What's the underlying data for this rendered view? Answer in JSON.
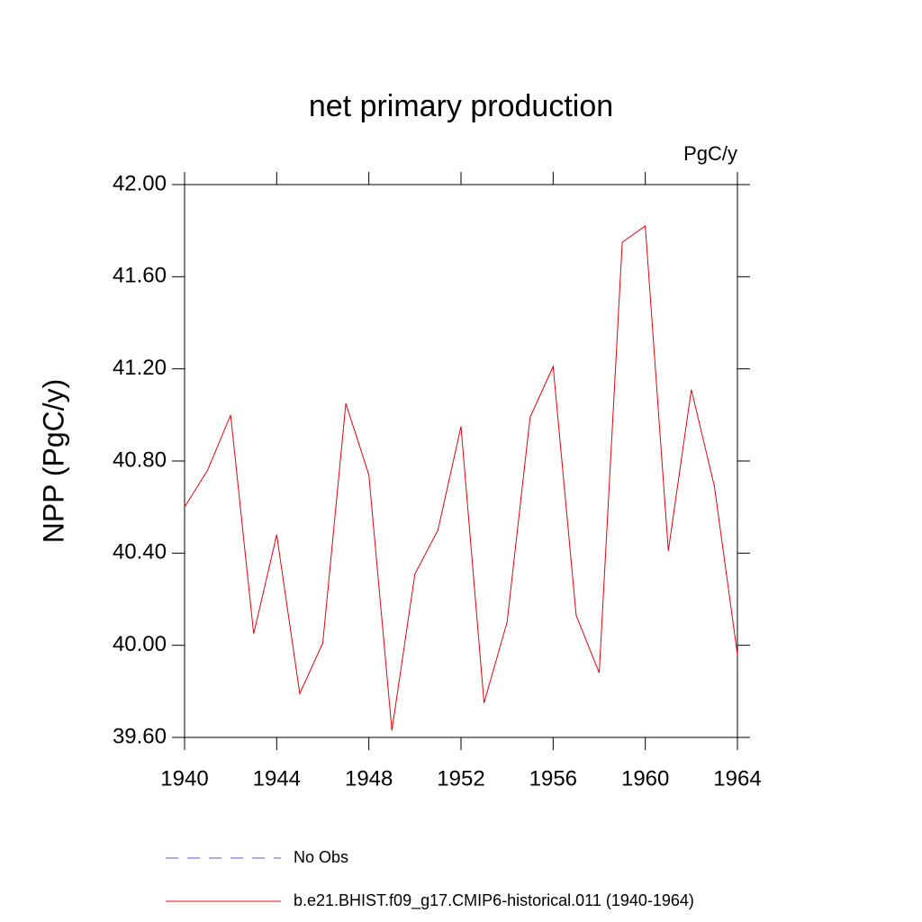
{
  "chart_data": {
    "type": "line",
    "title": "net primary production",
    "units": "PgC/y",
    "ylabel": "NPP  (PgC/y)",
    "x": [
      1940,
      1941,
      1942,
      1943,
      1944,
      1945,
      1946,
      1947,
      1948,
      1949,
      1950,
      1951,
      1952,
      1953,
      1954,
      1955,
      1956,
      1957,
      1958,
      1959,
      1960,
      1961,
      1962,
      1963,
      1964
    ],
    "series": [
      {
        "name": "No Obs",
        "color": "#6a5acd",
        "dashed": true,
        "values": [
          null,
          null,
          null,
          null,
          null,
          null,
          null,
          null,
          null,
          null,
          null,
          null,
          null,
          null,
          null,
          null,
          null,
          null,
          null,
          null,
          null,
          null,
          null,
          null,
          null
        ]
      },
      {
        "name": "b.e21.BHIST.f09_g17.CMIP6-historical.011 (1940-1964)",
        "color": "#e8000b",
        "dashed": false,
        "values": [
          40.6,
          40.76,
          41.0,
          40.05,
          40.48,
          39.79,
          40.01,
          41.05,
          40.74,
          39.63,
          40.31,
          40.5,
          40.95,
          39.75,
          40.1,
          40.99,
          41.21,
          40.13,
          39.88,
          41.75,
          41.82,
          40.41,
          41.11,
          40.69,
          39.96
        ]
      }
    ],
    "xlim": [
      1940,
      1964
    ],
    "xticks": [
      1940,
      1944,
      1948,
      1952,
      1956,
      1960,
      1964
    ],
    "ylim": [
      39.6,
      42.0
    ],
    "yticks": [
      {
        "value": 39.6,
        "label": "39.60"
      },
      {
        "value": 40.0,
        "label": "40.00"
      },
      {
        "value": 40.4,
        "label": "40.40"
      },
      {
        "value": 40.8,
        "label": "40.80"
      },
      {
        "value": 41.2,
        "label": "41.20"
      },
      {
        "value": 41.6,
        "label": "41.60"
      },
      {
        "value": 42.0,
        "label": "42.00"
      }
    ]
  }
}
